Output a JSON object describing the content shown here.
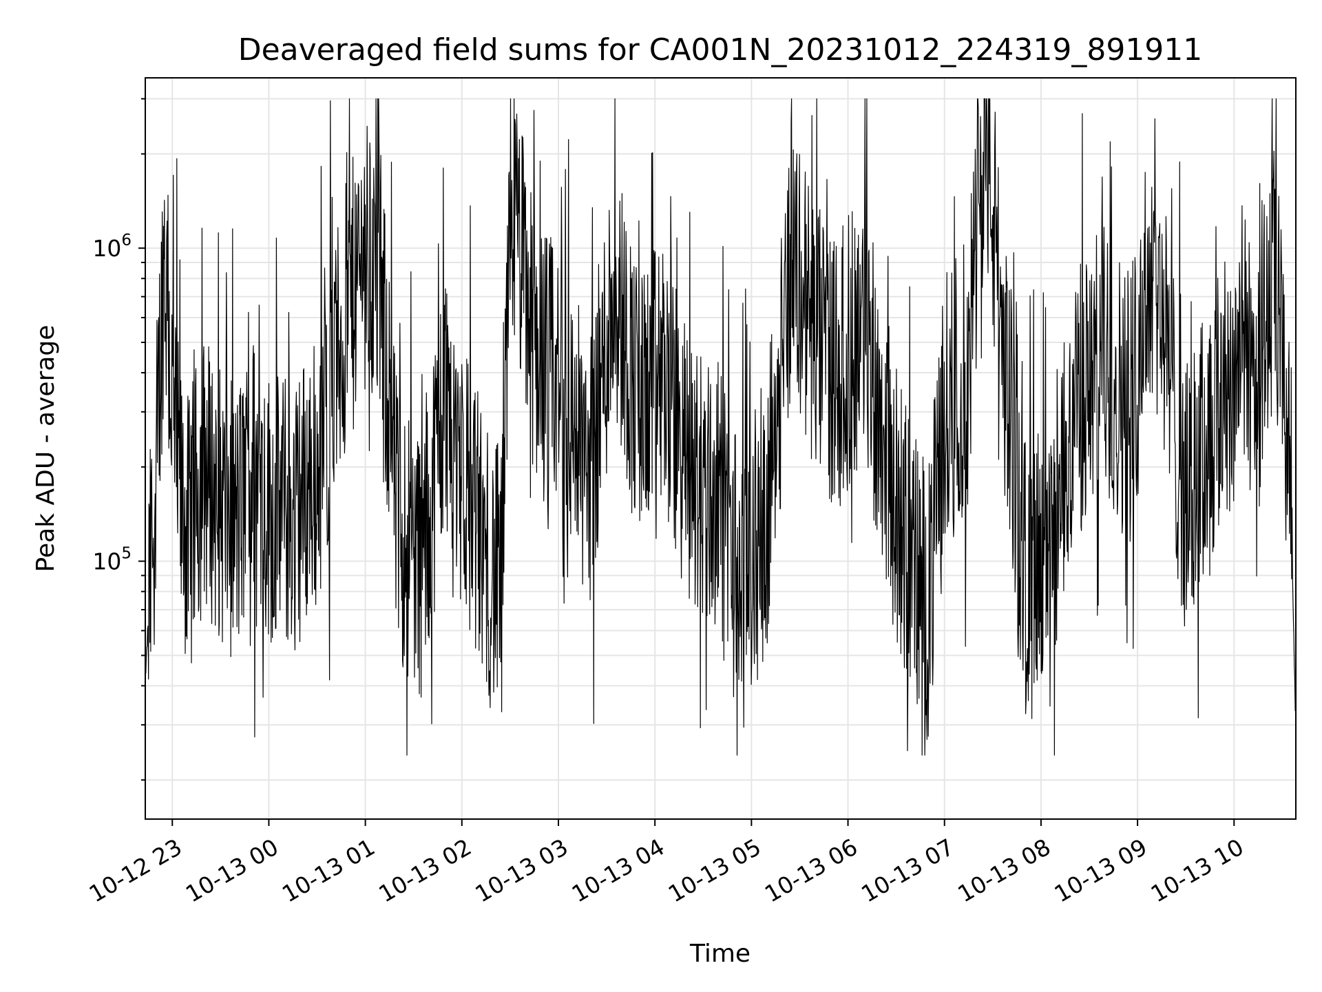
{
  "chart_data": {
    "type": "line",
    "title": "Deaveraged field sums for CA001N_20231012_224319_891911",
    "xlabel": "Time",
    "ylabel": "Peak ADU - average",
    "x_tick_labels": [
      "10-12 23",
      "10-13 00",
      "10-13 01",
      "10-13 02",
      "10-13 03",
      "10-13 04",
      "10-13 05",
      "10-13 06",
      "10-13 07",
      "10-13 08",
      "10-13 09",
      "10-13 10"
    ],
    "y_scale": "log",
    "y_tick_labels": [
      {
        "base": "10",
        "exp": "5",
        "value": 100000
      },
      {
        "base": "10",
        "exp": "6",
        "value": 1000000
      }
    ],
    "ylim": [
      15000,
      3500000
    ],
    "xlim_hours_from_2023_10_12_22_00": [
      0.72,
      12.64
    ],
    "grid": true,
    "line_color": "#000000",
    "grid_color": "#e5e5e5",
    "series": [
      {
        "x_time": [
          "2023-10-12 22:43",
          "2023-10-12 22:50",
          "2023-10-12 22:55",
          "2023-10-12 23:00",
          "2023-10-12 23:05",
          "2023-10-12 23:10",
          "2023-10-12 23:20",
          "2023-10-12 23:30",
          "2023-10-12 23:40",
          "2023-10-12 23:50",
          "2023-10-13 00:00",
          "2023-10-13 00:15",
          "2023-10-13 00:30",
          "2023-10-13 00:45",
          "2023-10-13 01:00",
          "2023-10-13 01:10",
          "2023-10-13 01:20",
          "2023-10-13 01:35",
          "2023-10-13 01:50",
          "2023-10-13 02:00",
          "2023-10-13 02:15",
          "2023-10-13 02:25",
          "2023-10-13 02:30",
          "2023-10-13 02:45",
          "2023-10-13 03:00",
          "2023-10-13 03:20",
          "2023-10-13 03:35",
          "2023-10-13 03:50",
          "2023-10-13 04:05",
          "2023-10-13 04:20",
          "2023-10-13 04:40",
          "2023-10-13 04:55",
          "2023-10-13 05:10",
          "2023-10-13 05:25",
          "2023-10-13 05:40",
          "2023-10-13 05:55",
          "2023-10-13 06:10",
          "2023-10-13 06:30",
          "2023-10-13 06:50",
          "2023-10-13 07:00",
          "2023-10-13 07:15",
          "2023-10-13 07:25",
          "2023-10-13 07:35",
          "2023-10-13 07:50",
          "2023-10-13 08:05",
          "2023-10-13 08:20",
          "2023-10-13 08:40",
          "2023-10-13 08:55",
          "2023-10-13 09:10",
          "2023-10-13 09:30",
          "2023-10-13 09:50",
          "2023-10-13 10:05",
          "2023-10-13 10:15",
          "2023-10-13 10:25",
          "2023-10-13 10:35",
          "2023-10-13 10:38"
        ],
        "y": [
          40000,
          200000,
          1000000,
          300000,
          150000,
          120000,
          200000,
          150000,
          130000,
          200000,
          150000,
          140000,
          200000,
          500000,
          1000000,
          700000,
          130000,
          100000,
          350000,
          200000,
          100000,
          80000,
          1500000,
          500000,
          350000,
          200000,
          800000,
          300000,
          400000,
          200000,
          150000,
          80000,
          150000,
          1000000,
          500000,
          400000,
          600000,
          150000,
          70000,
          300000,
          400000,
          2800000,
          600000,
          90000,
          80000,
          300000,
          450000,
          300000,
          1000000,
          150000,
          300000,
          500000,
          400000,
          800000,
          200000,
          35000
        ]
      }
    ]
  }
}
